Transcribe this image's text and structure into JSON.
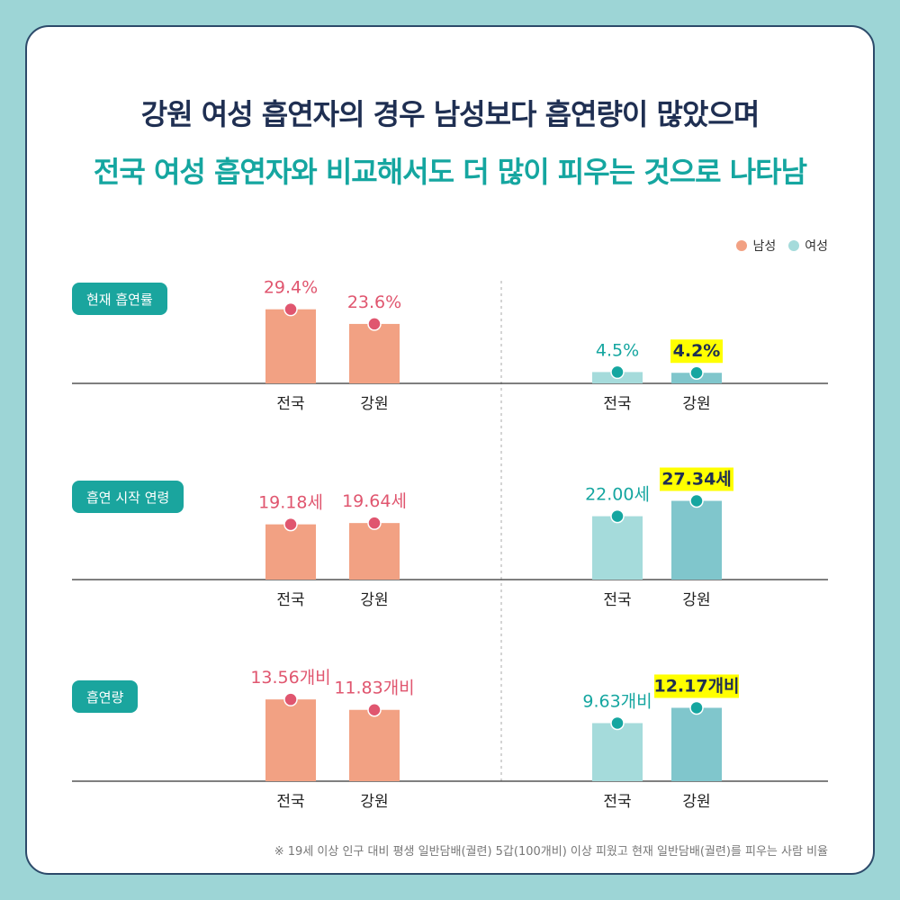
{
  "header": {
    "title_line1": "강원 여성 흡연자의 경우 남성보다 흡연량이 많았으며",
    "title_line2": "전국 여성 흡연자와 비교해서도 더 많이 피우는 것으로 나타남"
  },
  "legend": {
    "male": "남성",
    "female": "여성"
  },
  "colors": {
    "male": "#f2a183",
    "female_national": "#a5dbdb",
    "female_gangwon": "#80c6cc",
    "male_label": "#e0566f",
    "female_label": "#15a6a0",
    "highlight": "#ffff00",
    "pill": "#1aa59e"
  },
  "footnote": "※ 19세 이상 인구 대비 평생 일반담배(궐련) 5갑(100개비) 이상 피웠고 현재 일반담배(궐련)를 피우는 사람 비율",
  "chart_data": [
    {
      "type": "bar",
      "title": "현재 흡연률",
      "categories": [
        "전국",
        "강원"
      ],
      "series": [
        {
          "name": "남성",
          "values": [
            29.4,
            23.6
          ],
          "labels": [
            "29.4%",
            "23.6%"
          ]
        },
        {
          "name": "여성",
          "values": [
            4.5,
            4.2
          ],
          "labels": [
            "4.5%",
            "4.2%"
          ],
          "highlight": [
            false,
            true
          ]
        }
      ]
    },
    {
      "type": "bar",
      "title": "흡연 시작 연령",
      "categories": [
        "전국",
        "강원"
      ],
      "series": [
        {
          "name": "남성",
          "values": [
            19.18,
            19.64
          ],
          "labels": [
            "19.18세",
            "19.64세"
          ]
        },
        {
          "name": "여성",
          "values": [
            22.0,
            27.34
          ],
          "labels": [
            "22.00세",
            "27.34세"
          ],
          "highlight": [
            false,
            true
          ]
        }
      ]
    },
    {
      "type": "bar",
      "title": "흡연량",
      "categories": [
        "전국",
        "강원"
      ],
      "series": [
        {
          "name": "남성",
          "values": [
            13.56,
            11.83
          ],
          "labels": [
            "13.56개비",
            "11.83개비"
          ]
        },
        {
          "name": "여성",
          "values": [
            9.63,
            12.17
          ],
          "labels": [
            "9.63개비",
            "12.17개비"
          ],
          "highlight": [
            false,
            true
          ]
        }
      ]
    }
  ]
}
